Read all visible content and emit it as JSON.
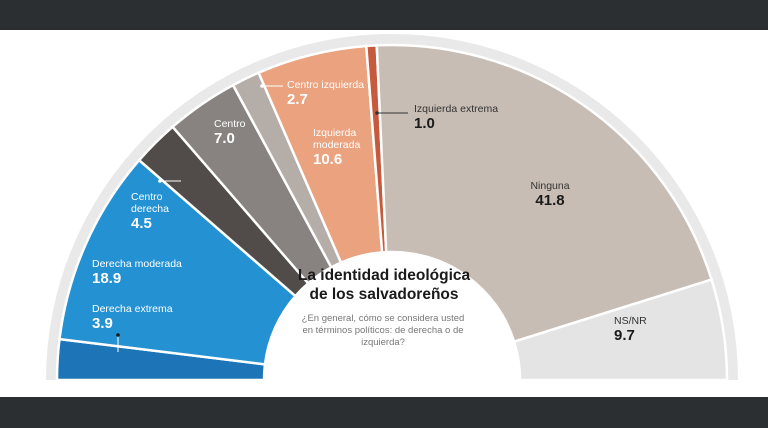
{
  "chart_data": {
    "type": "pie",
    "variant": "semicircle-donut",
    "title": "La identidad ideológica de los salvadoreños",
    "subtitle": "¿En general, cómo se considera usted en términos políticos: de derecha o de izquierda?",
    "slices": [
      {
        "label": "Derecha extrema",
        "value": 3.9,
        "color": "#1d75b8"
      },
      {
        "label": "Derecha moderada",
        "value": 18.9,
        "color": "#2391d2"
      },
      {
        "label": "Centro derecha",
        "value": 4.5,
        "color": "#514c49"
      },
      {
        "label": "Centro",
        "value": 7.0,
        "color": "#888380"
      },
      {
        "label": "Centro izquierda",
        "value": 2.7,
        "color": "#b5aea8"
      },
      {
        "label": "Izquierda moderada",
        "value": 10.6,
        "color": "#eaa27f"
      },
      {
        "label": "Izquierda extrema",
        "value": 1.0,
        "color": "#c75a3c"
      },
      {
        "label": "Ninguna",
        "value": 41.8,
        "color": "#c8bdb4"
      },
      {
        "label": "NS/NR",
        "value": 9.7,
        "color": "#e4e4e4"
      }
    ],
    "labels": [
      {
        "name": [
          "Derecha extrema"
        ],
        "value": "3.9",
        "color": "#ffffff",
        "valueColor": "#ffffff"
      },
      {
        "name": [
          "Derecha moderada"
        ],
        "value": "18.9",
        "color": "#ffffff",
        "valueColor": "#ffffff"
      },
      {
        "name": [
          "Centro",
          "derecha"
        ],
        "value": "4.5",
        "color": "#ffffff",
        "valueColor": "#ffffff"
      },
      {
        "name": [
          "Centro"
        ],
        "value": "7.0",
        "color": "#ffffff",
        "valueColor": "#ffffff"
      },
      {
        "name": [
          "Centro izquierda"
        ],
        "value": "2.7",
        "color": "#ffffff",
        "valueColor": "#ffffff"
      },
      {
        "name": [
          "Izquierda",
          "moderada"
        ],
        "value": "10.6",
        "color": "#ffffff",
        "valueColor": "#ffffff"
      },
      {
        "name": [
          "Izquierda extrema"
        ],
        "value": "1.0",
        "color": "#333333",
        "valueColor": "#1a1a1a"
      },
      {
        "name": [
          "Ninguna"
        ],
        "value": "41.8",
        "color": "#333333",
        "valueColor": "#1a1a1a"
      },
      {
        "name": [
          "NS/NR"
        ],
        "value": "9.7",
        "color": "#333333",
        "valueColor": "#1a1a1a"
      }
    ]
  }
}
